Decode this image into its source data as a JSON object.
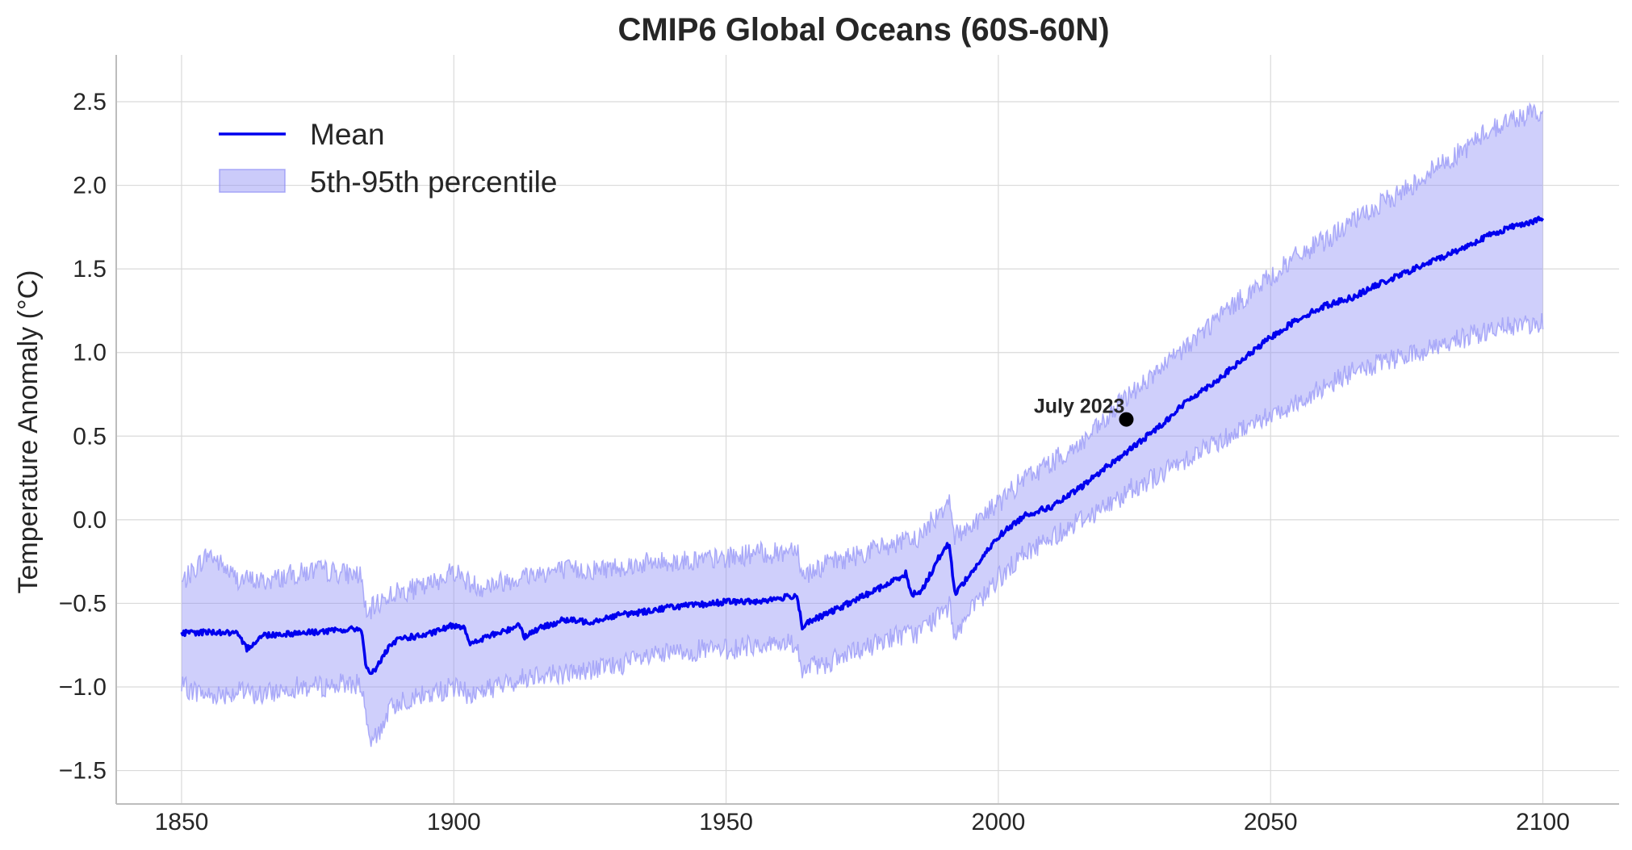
{
  "chart_data": {
    "type": "line",
    "title": "CMIP6 Global Oceans (60S-60N)",
    "xlabel": "",
    "ylabel": "Temperature Anomaly (°C)",
    "xlim": [
      1838,
      2114
    ],
    "ylim": [
      -1.7,
      2.78
    ],
    "xticks": [
      1850,
      1900,
      1950,
      2000,
      2050,
      2100
    ],
    "xtick_labels": [
      "1850",
      "1900",
      "1950",
      "2000",
      "2050",
      "2100"
    ],
    "yticks": [
      -1.5,
      -1.0,
      -0.5,
      0.0,
      0.5,
      1.0,
      1.5,
      2.0,
      2.5
    ],
    "ytick_labels": [
      "−1.5",
      "−1.0",
      "−0.5",
      "0.0",
      "0.5",
      "1.0",
      "1.5",
      "2.0",
      "2.5"
    ],
    "grid": true,
    "legend_position": "top-left",
    "colors": {
      "mean": "#0000ee",
      "band_fill": "#8c8cf5",
      "band_edge": "#9a9af7",
      "point": "#000000",
      "grid": "#dadada",
      "axis": "#bdbdbd"
    },
    "series": [
      {
        "name": "Mean",
        "kind": "line",
        "x": [
          1850,
          1855,
          1860,
          1862,
          1865,
          1870,
          1875,
          1880,
          1883,
          1884,
          1885,
          1888,
          1890,
          1895,
          1900,
          1902,
          1903,
          1906,
          1910,
          1912,
          1913,
          1915,
          1920,
          1925,
          1930,
          1935,
          1940,
          1945,
          1950,
          1955,
          1960,
          1963,
          1964,
          1966,
          1970,
          1975,
          1980,
          1983,
          1984,
          1986,
          1990,
          1991,
          1992,
          1995,
          2000,
          2005,
          2010,
          2015,
          2020,
          2023,
          2025,
          2030,
          2035,
          2040,
          2045,
          2050,
          2055,
          2060,
          2065,
          2070,
          2075,
          2080,
          2085,
          2090,
          2095,
          2100
        ],
        "y": [
          -0.68,
          -0.67,
          -0.68,
          -0.77,
          -0.69,
          -0.68,
          -0.67,
          -0.66,
          -0.65,
          -0.9,
          -0.92,
          -0.77,
          -0.71,
          -0.69,
          -0.63,
          -0.64,
          -0.75,
          -0.7,
          -0.66,
          -0.62,
          -0.7,
          -0.66,
          -0.6,
          -0.61,
          -0.57,
          -0.55,
          -0.52,
          -0.51,
          -0.49,
          -0.49,
          -0.47,
          -0.45,
          -0.64,
          -0.6,
          -0.54,
          -0.46,
          -0.38,
          -0.32,
          -0.45,
          -0.42,
          -0.17,
          -0.15,
          -0.44,
          -0.32,
          -0.1,
          0.03,
          0.08,
          0.19,
          0.32,
          0.39,
          0.44,
          0.57,
          0.72,
          0.83,
          0.96,
          1.09,
          1.2,
          1.28,
          1.33,
          1.41,
          1.48,
          1.55,
          1.62,
          1.7,
          1.76,
          1.8
        ]
      },
      {
        "name": "5th-95th percentile",
        "kind": "band",
        "x": [
          1850,
          1855,
          1860,
          1865,
          1870,
          1875,
          1880,
          1883,
          1884,
          1885,
          1888,
          1890,
          1895,
          1900,
          1903,
          1905,
          1910,
          1915,
          1920,
          1925,
          1930,
          1935,
          1940,
          1945,
          1950,
          1955,
          1960,
          1963,
          1964,
          1966,
          1970,
          1975,
          1980,
          1985,
          1990,
          1991,
          1992,
          1995,
          2000,
          2005,
          2010,
          2015,
          2020,
          2023,
          2025,
          2030,
          2035,
          2040,
          2045,
          2050,
          2055,
          2060,
          2065,
          2070,
          2075,
          2080,
          2085,
          2090,
          2095,
          2100
        ],
        "upper": [
          -0.38,
          -0.2,
          -0.35,
          -0.37,
          -0.33,
          -0.3,
          -0.32,
          -0.33,
          -0.6,
          -0.53,
          -0.45,
          -0.43,
          -0.4,
          -0.3,
          -0.38,
          -0.4,
          -0.36,
          -0.32,
          -0.3,
          -0.3,
          -0.28,
          -0.26,
          -0.25,
          -0.24,
          -0.23,
          -0.2,
          -0.2,
          -0.15,
          -0.33,
          -0.3,
          -0.25,
          -0.2,
          -0.15,
          -0.12,
          0.08,
          0.15,
          -0.1,
          -0.03,
          0.1,
          0.25,
          0.35,
          0.45,
          0.6,
          0.72,
          0.78,
          0.9,
          1.05,
          1.2,
          1.33,
          1.45,
          1.58,
          1.67,
          1.78,
          1.88,
          1.98,
          2.1,
          2.2,
          2.33,
          2.4,
          2.45
        ],
        "lower": [
          -1.0,
          -1.05,
          -1.03,
          -1.05,
          -1.0,
          -1.0,
          -0.98,
          -0.98,
          -1.25,
          -1.35,
          -1.15,
          -1.08,
          -1.05,
          -1.0,
          -1.05,
          -1.02,
          -0.98,
          -0.92,
          -0.92,
          -0.9,
          -0.87,
          -0.83,
          -0.8,
          -0.78,
          -0.78,
          -0.75,
          -0.74,
          -0.74,
          -0.92,
          -0.88,
          -0.84,
          -0.78,
          -0.7,
          -0.68,
          -0.55,
          -0.52,
          -0.68,
          -0.55,
          -0.35,
          -0.2,
          -0.1,
          0.0,
          0.08,
          0.15,
          0.2,
          0.27,
          0.38,
          0.46,
          0.55,
          0.63,
          0.7,
          0.8,
          0.88,
          0.93,
          0.98,
          1.03,
          1.08,
          1.13,
          1.16,
          1.18
        ]
      }
    ],
    "annotations": [
      {
        "label": "July 2023",
        "x": 2023.5,
        "y": 0.6
      }
    ]
  }
}
